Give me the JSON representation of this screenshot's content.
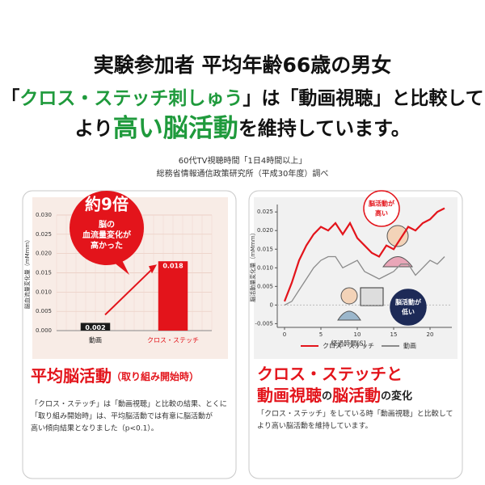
{
  "headline": {
    "line1": "実験参加者 平均年齢66歳の男女",
    "line2": [
      "「",
      "クロス・ステッチ刺しゅう",
      "」は「",
      "動画視聴",
      "」と比較して"
    ],
    "line3": [
      "より",
      "高い脳活動",
      "を維持しています。"
    ]
  },
  "source": [
    "60代TV視聴時間「1日4時間以上」",
    "総務省情報通信政策研究所（平成30年度）調べ"
  ],
  "chart_data": [
    {
      "type": "bar",
      "ylabel": "脳血流量変化量（mMmm）",
      "categories": [
        "動画",
        "クロス・ステッチ"
      ],
      "values": [
        0.002,
        0.018
      ],
      "colors": [
        "#1a1a1a",
        "#e3141b"
      ],
      "ylim": [
        0,
        0.03
      ],
      "yticks": [
        {
          "value": 0,
          "label": "0.000"
        },
        0.005,
        {
          "value": 0.01,
          "label": "0.010"
        },
        0.015,
        {
          "value": 0.02,
          "label": "0.020"
        },
        0.025,
        {
          "value": 0.03,
          "label": "0.030"
        }
      ],
      "grid": true,
      "callout": {
        "headline": "約9倍",
        "lines": [
          "脳の",
          "血流量変化が",
          "高かった"
        ]
      },
      "caption": {
        "main": "平均脳活動",
        "sub": "（取り組み開始時）"
      },
      "description": [
        "「クロス・ステッチ」は「動画視聴」と比較の結果、とくに",
        "「取り組み開始時」は、平均脳活動では有意に脳活動が",
        "高い傾向結果となりました（p<0.1）。"
      ]
    },
    {
      "type": "line",
      "ylabel": "脳活動量変化量（mMmm）",
      "xlabel": "経過時間[S]",
      "x": [
        0,
        1,
        2,
        3,
        4,
        5,
        6,
        7,
        8,
        9,
        10,
        11,
        12,
        13,
        14,
        15,
        16,
        17,
        18,
        19,
        20,
        21,
        22
      ],
      "series": [
        {
          "name": "クロス・ステッチ",
          "color": "#e3141b",
          "values": [
            0.001,
            0.006,
            0.012,
            0.016,
            0.019,
            0.021,
            0.02,
            0.022,
            0.019,
            0.022,
            0.018,
            0.016,
            0.014,
            0.013,
            0.016,
            0.015,
            0.018,
            0.021,
            0.02,
            0.022,
            0.023,
            0.025,
            0.026
          ]
        },
        {
          "name": "動画",
          "color": "#8a8a8a",
          "values": [
            0,
            0.001,
            0.004,
            0.007,
            0.01,
            0.012,
            0.013,
            0.013,
            0.01,
            0.011,
            0.012,
            0.009,
            0.008,
            0.007,
            0.008,
            0.009,
            0.011,
            0.011,
            0.008,
            0.01,
            0.012,
            0.011,
            0.013
          ]
        }
      ],
      "xlim": [
        -1,
        23
      ],
      "xticks": [
        0,
        5,
        10,
        15,
        20
      ],
      "ylim": [
        -0.006,
        0.027
      ],
      "yticks": [
        -0.005,
        0,
        0.005,
        {
          "value": 0.01,
          "label": "0.010"
        },
        0.015,
        {
          "value": 0.02,
          "label": "0.020"
        },
        0.025
      ],
      "callouts": [
        [
          "脳活動が",
          "高い"
        ],
        [
          "脳活動が",
          "低い"
        ]
      ],
      "caption": {
        "line1": "クロス・ステッチと",
        "line2": [
          "動画視聴",
          "の",
          "脳活動",
          "の変化"
        ]
      },
      "description": [
        "「クロス・ステッチ」をしている時「動画視聴」と比較して",
        "より高い脳活動を維持しています。"
      ]
    }
  ]
}
